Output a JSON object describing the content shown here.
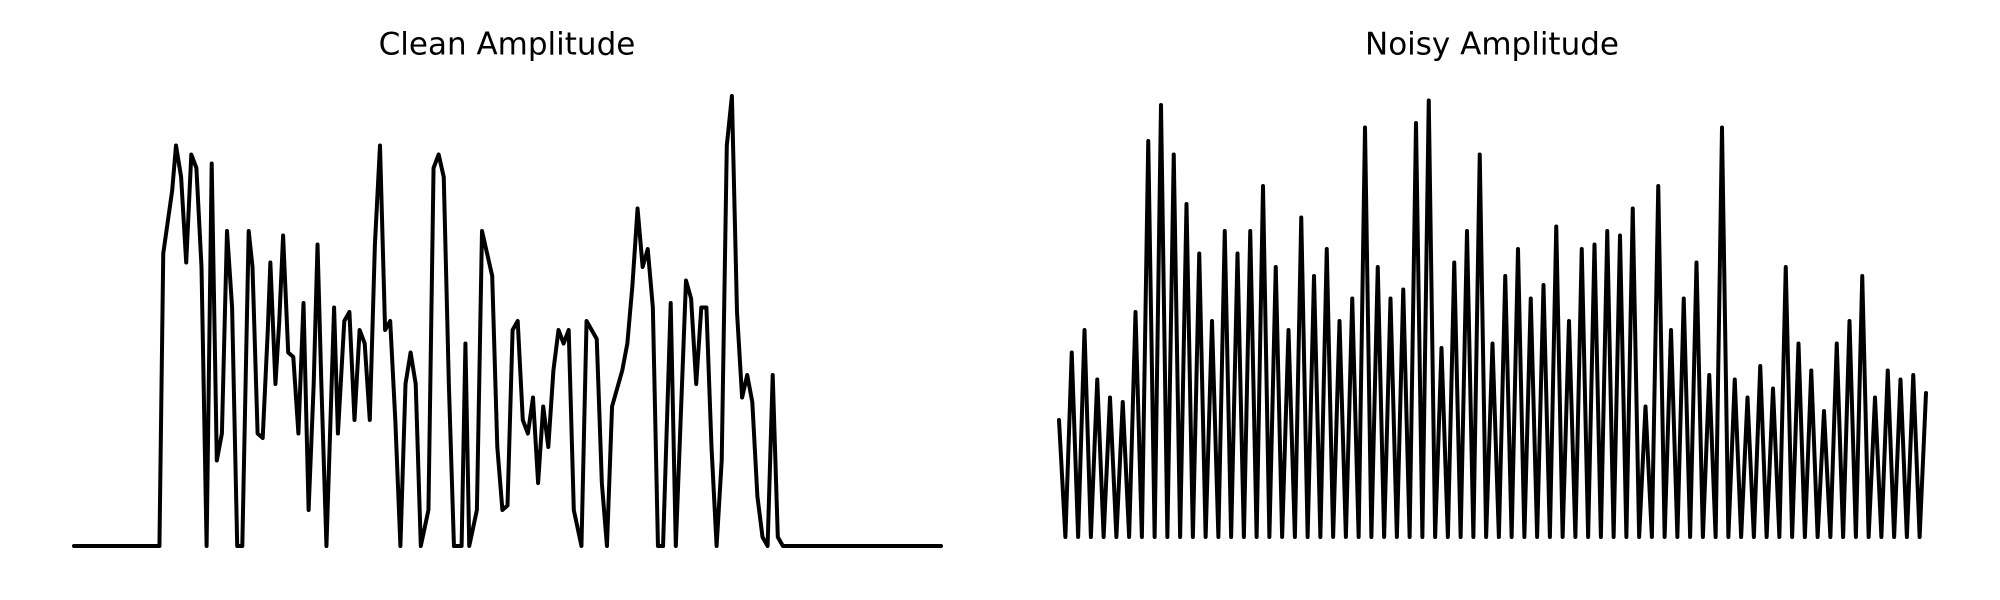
{
  "chart_data": [
    {
      "type": "line",
      "title": "Clean Amplitude",
      "color": "#000000",
      "xlim": [
        0,
        680
      ],
      "ylim": [
        0,
        1
      ],
      "x": [
        0,
        67,
        70,
        77,
        80,
        84,
        88,
        92,
        96,
        100,
        104,
        108,
        112,
        116,
        120,
        124,
        128,
        132,
        137,
        140,
        144,
        148,
        152,
        154,
        158,
        161,
        164,
        168,
        172,
        176,
        180,
        184,
        188,
        191,
        194,
        198,
        204,
        207,
        212,
        216,
        220,
        224,
        228,
        232,
        236,
        240,
        244,
        248,
        252,
        256,
        260,
        264,
        268,
        272,
        278,
        282,
        286,
        290,
        294,
        298,
        304,
        307,
        310,
        316,
        320,
        324,
        328,
        332,
        336,
        340,
        344,
        348,
        352,
        356,
        360,
        364,
        368,
        372,
        376,
        380,
        384,
        388,
        392,
        398,
        402,
        406,
        410,
        414,
        418,
        422,
        426,
        430,
        434,
        438,
        442,
        446,
        450,
        454,
        458,
        462,
        468,
        472,
        480,
        484,
        488,
        492,
        496,
        500,
        504,
        508,
        512,
        516,
        520,
        524,
        528,
        532,
        536,
        540,
        544,
        548,
        552,
        556,
        680
      ],
      "values": [
        0,
        0,
        0.65,
        0.79,
        0.89,
        0.82,
        0.63,
        0.87,
        0.84,
        0.62,
        0,
        0.85,
        0.19,
        0.25,
        0.7,
        0.53,
        0,
        0,
        0.7,
        0.62,
        0.25,
        0.24,
        0.48,
        0.63,
        0.36,
        0.5,
        0.69,
        0.43,
        0.42,
        0.25,
        0.54,
        0.08,
        0.36,
        0.67,
        0.36,
        0,
        0.53,
        0.25,
        0.5,
        0.52,
        0.28,
        0.48,
        0.45,
        0.28,
        0.67,
        0.89,
        0.48,
        0.5,
        0.28,
        0,
        0.36,
        0.43,
        0.36,
        0,
        0.08,
        0.84,
        0.87,
        0.82,
        0.36,
        0,
        0,
        0.45,
        0,
        0.08,
        0.7,
        0.65,
        0.6,
        0.22,
        0.08,
        0.09,
        0.48,
        0.5,
        0.28,
        0.25,
        0.33,
        0.14,
        0.31,
        0.22,
        0.39,
        0.48,
        0.45,
        0.48,
        0.08,
        0,
        0.5,
        0.48,
        0.46,
        0.14,
        0,
        0.31,
        0.35,
        0.39,
        0.45,
        0.58,
        0.75,
        0.62,
        0.66,
        0.53,
        0,
        0,
        0.54,
        0,
        0.59,
        0.55,
        0.36,
        0.53,
        0.53,
        0.22,
        0,
        0.19,
        0.89,
        1.0,
        0.52,
        0.33,
        0.38,
        0.32,
        0.11,
        0.02,
        0,
        0.38,
        0.02,
        0,
        0
      ]
    },
    {
      "type": "line",
      "title": "Noisy Amplitude",
      "color": "#000000",
      "xlim": [
        0,
        680
      ],
      "ylim": [
        0,
        1
      ],
      "x": [
        0,
        5,
        10,
        15,
        20,
        25,
        30,
        35,
        40,
        45,
        50,
        55,
        60,
        65,
        70,
        75,
        80,
        85,
        90,
        95,
        100,
        105,
        110,
        115,
        120,
        125,
        130,
        135,
        140,
        145,
        150,
        155,
        160,
        165,
        170,
        175,
        180,
        185,
        190,
        195,
        200,
        205,
        210,
        215,
        220,
        225,
        230,
        235,
        240,
        245,
        250,
        255,
        260,
        265,
        270,
        275,
        280,
        285,
        290,
        295,
        300,
        305,
        310,
        315,
        320,
        325,
        330,
        335,
        340,
        345,
        350,
        355,
        360,
        365,
        370,
        375,
        380,
        385,
        390,
        395,
        400,
        405,
        410,
        415,
        420,
        425,
        430,
        435,
        440,
        445,
        450,
        455,
        460,
        465,
        470,
        475,
        480,
        485,
        490,
        495,
        500,
        505,
        510,
        515,
        520,
        525,
        530,
        535,
        540,
        545,
        550,
        555,
        560,
        565,
        570,
        575,
        580,
        585,
        590,
        595,
        600,
        605,
        610,
        615,
        620,
        625,
        630,
        635,
        640,
        645,
        650,
        655,
        660,
        665,
        670,
        675,
        680
      ],
      "values": [
        0.28,
        0.02,
        0.43,
        0.02,
        0.48,
        0.02,
        0.37,
        0.02,
        0.33,
        0.02,
        0.32,
        0.02,
        0.52,
        0.02,
        0.9,
        0.02,
        0.98,
        0.02,
        0.87,
        0.02,
        0.76,
        0.02,
        0.65,
        0.02,
        0.5,
        0.02,
        0.7,
        0.02,
        0.65,
        0.02,
        0.7,
        0.02,
        0.8,
        0.02,
        0.62,
        0.02,
        0.48,
        0.02,
        0.73,
        0.02,
        0.6,
        0.02,
        0.66,
        0.02,
        0.5,
        0.02,
        0.55,
        0.02,
        0.93,
        0.02,
        0.62,
        0.02,
        0.55,
        0.02,
        0.57,
        0.02,
        0.94,
        0.02,
        0.99,
        0.02,
        0.44,
        0.02,
        0.63,
        0.02,
        0.7,
        0.02,
        0.87,
        0.02,
        0.45,
        0.02,
        0.6,
        0.02,
        0.66,
        0.02,
        0.55,
        0.02,
        0.58,
        0.02,
        0.71,
        0.02,
        0.5,
        0.02,
        0.66,
        0.02,
        0.67,
        0.02,
        0.7,
        0.02,
        0.69,
        0.02,
        0.75,
        0.02,
        0.31,
        0.02,
        0.8,
        0.02,
        0.48,
        0.02,
        0.55,
        0.02,
        0.63,
        0.02,
        0.38,
        0.02,
        0.93,
        0.02,
        0.37,
        0.02,
        0.33,
        0.02,
        0.4,
        0.02,
        0.35,
        0.02,
        0.62,
        0.02,
        0.45,
        0.02,
        0.39,
        0.02,
        0.3,
        0.02,
        0.45,
        0.02,
        0.5,
        0.02,
        0.6,
        0.02,
        0.33,
        0.02,
        0.39,
        0.02,
        0.37,
        0.02,
        0.38,
        0.02,
        0.34
      ]
    }
  ]
}
